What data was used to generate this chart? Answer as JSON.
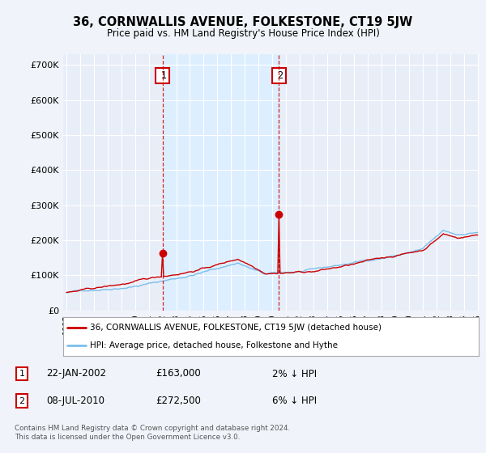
{
  "title": "36, CORNWALLIS AVENUE, FOLKESTONE, CT19 5JW",
  "subtitle": "Price paid vs. HM Land Registry's House Price Index (HPI)",
  "hpi_color": "#7bbfea",
  "price_color": "#cc0000",
  "shade_color": "#ddeeff",
  "background_color": "#f0f4fa",
  "plot_bg_color": "#e8eef8",
  "grid_color": "#ffffff",
  "ylim": [
    0,
    730000
  ],
  "yticks": [
    0,
    100000,
    200000,
    300000,
    400000,
    500000,
    600000,
    700000
  ],
  "ytick_labels": [
    "£0",
    "£100K",
    "£200K",
    "£300K",
    "£400K",
    "£500K",
    "£600K",
    "£700K"
  ],
  "sale1_label": "1",
  "sale1_value": 163000,
  "sale2_label": "2",
  "sale2_value": 272500,
  "legend_line1": "36, CORNWALLIS AVENUE, FOLKESTONE, CT19 5JW (detached house)",
  "legend_line2": "HPI: Average price, detached house, Folkestone and Hythe",
  "fn1_num": "1",
  "fn1_date": "22-JAN-2002",
  "fn1_price": "£163,000",
  "fn1_pct": "2% ↓ HPI",
  "fn2_num": "2",
  "fn2_date": "08-JUL-2010",
  "fn2_price": "£272,500",
  "fn2_pct": "6% ↓ HPI",
  "footnote_copy": "Contains HM Land Registry data © Crown copyright and database right 2024.\nThis data is licensed under the Open Government Licence v3.0."
}
